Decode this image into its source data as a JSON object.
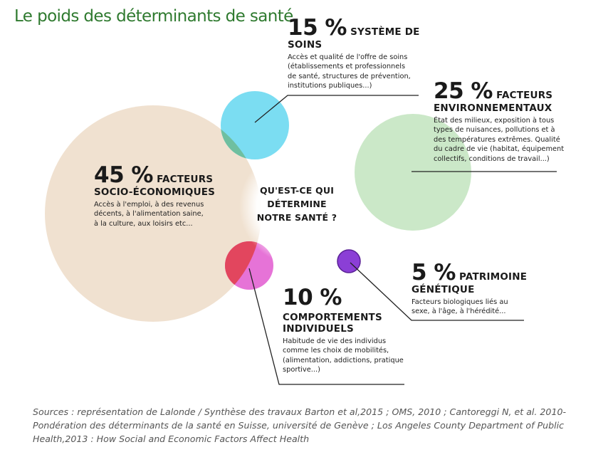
{
  "title": "Le poids des déterminants de santé",
  "center_question": [
    "QU'EST-CE QUI",
    "DÉTERMINE",
    "NOTRE SANTÉ ?"
  ],
  "colors": {
    "title": "#2f7a2f",
    "socio": "#eddcc8",
    "soins": "#5ad4ef",
    "environnement": "#b9e0b6",
    "comportements": "#e25bd0",
    "genetique": "#8b3fd6",
    "overlap_socio_soins": "#6fbfa0",
    "overlap_socio_comport": "#e2465e"
  },
  "chart_data": {
    "type": "bubble",
    "title": "Le poids des déterminants de santé",
    "items": [
      {
        "key": "socio",
        "percent": 45,
        "percent_label": "45 %",
        "caption_line1": "FACTEURS",
        "caption_line2": "SOCIO-ÉCONOMIQUES",
        "description": [
          "Accès à l'emploi, à des revenus",
          "décents, à l'alimentation saine,",
          "à la culture, aux loisirs etc..."
        ]
      },
      {
        "key": "soins",
        "percent": 15,
        "percent_label": "15 %",
        "caption_line1": "SYSTÈME DE",
        "caption_line2": "SOINS",
        "description": [
          "Accès et qualité de l'offre de soins",
          "(établissements et professionnels",
          "de santé, structures de prévention,",
          "institutions publiques...)"
        ]
      },
      {
        "key": "environnement",
        "percent": 25,
        "percent_label": "25 %",
        "caption_line1": "FACTEURS",
        "caption_line2": "ENVIRONNEMENTAUX",
        "description": [
          "État des milieux, exposition à tous",
          "types de nuisances, pollutions et à",
          "des températures extrêmes. Qualité",
          "du cadre de vie (habitat, équipement",
          "collectifs, conditions de travail...)"
        ]
      },
      {
        "key": "comportements",
        "percent": 10,
        "percent_label": "10 %",
        "caption_line1": "COMPORTEMENTS",
        "caption_line2": "INDIVIDUELS",
        "description": [
          "Habitude de vie des individus",
          "comme les choix de mobilités,",
          "(alimentation, addictions, pratique",
          "sportive...)"
        ]
      },
      {
        "key": "genetique",
        "percent": 5,
        "percent_label": "5 %",
        "caption_line1": "PATRIMOINE",
        "caption_line2": "GÉNÉTIQUE",
        "description": [
          "Facteurs biologiques liés au",
          "sexe, à l'âge, à l'hérédité..."
        ]
      }
    ]
  },
  "sources": [
    "Sources : représentation de Lalonde / Synthèse des travaux Barton et al,2015 ; OMS, 2010 ; Cantoreggi N, et al. 2010-",
    "Pondération des déterminants de la santé en Suisse, université de Genève ; Los Angeles County Department of Public",
    "Health,2013 : How Social and Economic Factors Affect Health"
  ]
}
